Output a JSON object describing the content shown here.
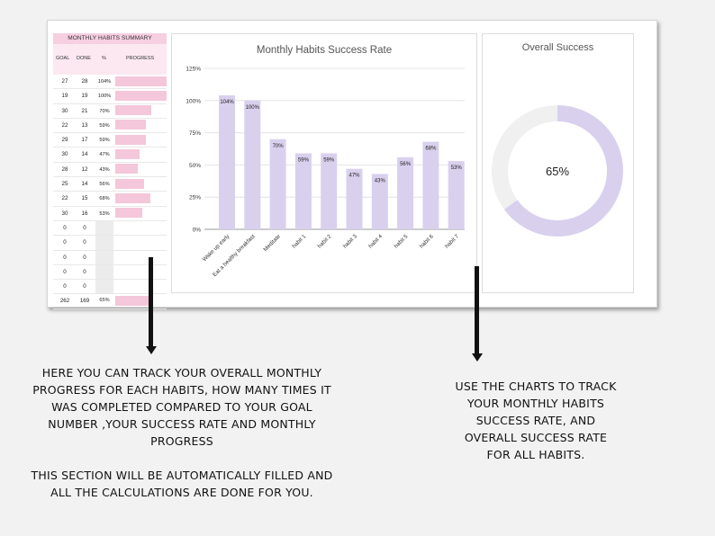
{
  "summary": {
    "title": "MONTHLY HABITS SUMMARY",
    "columns": {
      "goal": "GOAL",
      "done": "DONE",
      "percent": "%",
      "progress": "PROGRESS"
    },
    "rows": [
      {
        "goal": "27",
        "done": "28",
        "pct": "104%",
        "progress": 1.0
      },
      {
        "goal": "19",
        "done": "19",
        "pct": "100%",
        "progress": 1.0
      },
      {
        "goal": "30",
        "done": "21",
        "pct": "70%",
        "progress": 0.7
      },
      {
        "goal": "22",
        "done": "13",
        "pct": "59%",
        "progress": 0.59
      },
      {
        "goal": "29",
        "done": "17",
        "pct": "59%",
        "progress": 0.59
      },
      {
        "goal": "30",
        "done": "14",
        "pct": "47%",
        "progress": 0.47
      },
      {
        "goal": "28",
        "done": "12",
        "pct": "43%",
        "progress": 0.43
      },
      {
        "goal": "25",
        "done": "14",
        "pct": "56%",
        "progress": 0.56
      },
      {
        "goal": "22",
        "done": "15",
        "pct": "68%",
        "progress": 0.68
      },
      {
        "goal": "30",
        "done": "16",
        "pct": "53%",
        "progress": 0.53
      },
      {
        "goal": "0",
        "done": "0",
        "pct": "",
        "progress": 0
      },
      {
        "goal": "0",
        "done": "0",
        "pct": "",
        "progress": 0
      },
      {
        "goal": "0",
        "done": "0",
        "pct": "",
        "progress": 0
      },
      {
        "goal": "0",
        "done": "0",
        "pct": "",
        "progress": 0
      },
      {
        "goal": "0",
        "done": "0",
        "pct": "",
        "progress": 0
      }
    ],
    "total": {
      "goal": "262",
      "done": "169",
      "pct": "65%",
      "progress": 0.65
    }
  },
  "chart_data": [
    {
      "type": "bar",
      "title": "Monthly Habits Success Rate",
      "categories": [
        "Wake up early",
        "Eat a healthy breakfast",
        "Meditate",
        "habit 1",
        "habit 2",
        "habit 3",
        "habit 4",
        "habit 5",
        "habit 6",
        "habit 7"
      ],
      "values": [
        104,
        100,
        70,
        59,
        59,
        47,
        43,
        56,
        68,
        53
      ],
      "data_labels": [
        "104%",
        "100%",
        "70%",
        "59%",
        "59%",
        "47%",
        "43%",
        "56%",
        "68%",
        "53%"
      ],
      "yticks": [
        "0%",
        "25%",
        "50%",
        "75%",
        "100%",
        "125%"
      ],
      "ylim": [
        0,
        125
      ],
      "grid": true,
      "color": "#d9d0ee"
    },
    {
      "type": "pie",
      "title": "Overall Success",
      "center_label": "65%",
      "values": [
        65,
        35
      ],
      "colors": [
        "#d9d0ee",
        "#f0f0f0"
      ]
    }
  ],
  "captions": {
    "left": [
      "HERE YOU CAN TRACK YOUR OVERALL MONTHLY",
      "PROGRESS FOR EACH HABITS, HOW MANY TIMES IT",
      "WAS COMPLETED COMPARED TO YOUR GOAL",
      "NUMBER ,YOUR SUCCESS RATE AND MONTHLY",
      "PROGRESS",
      "",
      "THIS SECTION WILL BE AUTOMATICALLY FILLED AND",
      "ALL THE CALCULATIONS ARE DONE FOR YOU."
    ],
    "right": [
      "USE THE CHARTS TO TRACK",
      "YOUR MONTHLY HABITS",
      "SUCCESS RATE, AND",
      "OVERALL SUCCESS RATE",
      "FOR ALL HABITS."
    ]
  }
}
